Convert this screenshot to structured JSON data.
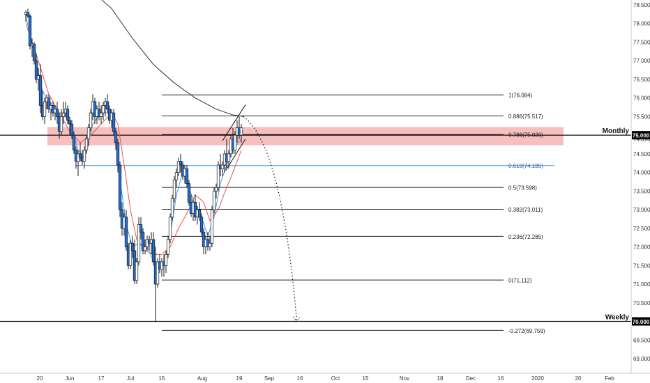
{
  "chart_data": {
    "type": "candlestick",
    "x_axis": {
      "tick_labels": [
        "20",
        "Jun",
        "17",
        "Jul",
        "15",
        "Aug",
        "19",
        "Sep",
        "16",
        "Oct",
        "15",
        "Nov",
        "18",
        "Dec",
        "16",
        "2020",
        "20",
        "Feb"
      ],
      "range_days": [
        -40,
        293
      ]
    },
    "y_axis": {
      "tick_labels": [
        "78.500",
        "78.000",
        "77.500",
        "77.000",
        "76.500",
        "76.000",
        "75.500",
        "74.500",
        "74.000",
        "73.500",
        "73.000",
        "72.500",
        "72.000",
        "71.500",
        "71.000",
        "70.500",
        "69.500",
        "69.000"
      ],
      "tick_values": [
        78.5,
        78.0,
        77.5,
        77.0,
        76.5,
        76.0,
        75.5,
        74.5,
        74.0,
        73.5,
        73.0,
        72.5,
        72.0,
        71.5,
        71.0,
        70.5,
        69.5,
        69.0
      ],
      "range": [
        68.75,
        78.68
      ],
      "last_price_label": "74.896",
      "last_price": 74.896
    },
    "horizontal_levels": [
      {
        "label": "Monthly",
        "price_label": "75.000",
        "value": 75.0
      },
      {
        "label": "Weekly",
        "price_label": "70.000",
        "value": 70.0
      }
    ],
    "zone": {
      "from": 74.73,
      "to": 75.22,
      "color": "#f28a8a"
    },
    "fibonacci": {
      "levels": [
        {
          "label": "1(76.084)",
          "value": 76.084
        },
        {
          "label": "0.886(75.517)",
          "value": 75.517
        },
        {
          "label": "0.786(75.020)",
          "value": 75.02
        },
        {
          "label": "0.618(74.185)",
          "value": 74.185
        },
        {
          "label": "0.5(73.598)",
          "value": 73.598
        },
        {
          "label": "0.382(73.011)",
          "value": 73.011
        },
        {
          "label": "0.236(72.285)",
          "value": 72.285
        },
        {
          "label": "0(71.112)",
          "value": 71.112
        },
        {
          "label": "-0.272(69.759)",
          "value": 69.759
        }
      ]
    },
    "candles": [
      [
        -42,
        78.25,
        78.35,
        78.05,
        78.3
      ],
      [
        -40,
        78.3,
        78.4,
        78.15,
        78.2
      ],
      [
        -38,
        78.2,
        78.25,
        77.3,
        77.4
      ],
      [
        -36,
        77.4,
        77.6,
        77.1,
        77.45
      ],
      [
        -34,
        77.45,
        77.5,
        76.9,
        77.0
      ],
      [
        -32,
        77.0,
        77.2,
        76.4,
        76.5
      ],
      [
        -30,
        76.5,
        76.8,
        76.2,
        76.6
      ],
      [
        -28,
        76.6,
        76.9,
        75.6,
        75.8
      ],
      [
        -26,
        75.8,
        76.2,
        75.4,
        75.5
      ],
      [
        -24,
        75.5,
        76.0,
        75.3,
        75.9
      ],
      [
        -22,
        75.9,
        76.1,
        75.7,
        76.0
      ],
      [
        -20,
        76.0,
        76.1,
        75.6,
        75.7
      ],
      [
        -18,
        75.7,
        75.9,
        75.4,
        75.8
      ],
      [
        -16,
        75.8,
        75.9,
        75.5,
        75.6
      ],
      [
        -14,
        75.6,
        75.8,
        75.4,
        75.7
      ],
      [
        -12,
        75.7,
        75.9,
        75.3,
        75.5
      ],
      [
        -10,
        75.5,
        75.6,
        74.9,
        75.1
      ],
      [
        -8,
        75.1,
        75.7,
        75.0,
        75.5
      ],
      [
        -6,
        75.5,
        75.9,
        75.3,
        75.6
      ],
      [
        -4,
        75.6,
        75.9,
        75.5,
        75.7
      ],
      [
        -2,
        75.7,
        75.8,
        75.3,
        75.4
      ],
      [
        0,
        75.4,
        75.5,
        75.0,
        75.3
      ],
      [
        2,
        75.3,
        75.4,
        74.9,
        75.0
      ],
      [
        4,
        75.0,
        75.1,
        74.5,
        74.6
      ],
      [
        6,
        74.6,
        74.7,
        74.1,
        74.3
      ],
      [
        8,
        74.3,
        74.6,
        73.9,
        74.5
      ],
      [
        10,
        74.5,
        74.8,
        74.3,
        74.4
      ],
      [
        12,
        74.4,
        74.6,
        74.2,
        74.3
      ],
      [
        14,
        74.3,
        74.7,
        74.1,
        74.6
      ],
      [
        16,
        74.6,
        75.0,
        74.5,
        74.9
      ],
      [
        18,
        74.9,
        75.3,
        74.7,
        75.2
      ],
      [
        20,
        75.2,
        75.7,
        75.1,
        75.6
      ],
      [
        22,
        75.6,
        76.1,
        75.4,
        75.9
      ],
      [
        24,
        75.9,
        76.0,
        75.3,
        75.5
      ],
      [
        26,
        75.5,
        75.8,
        75.3,
        75.7
      ],
      [
        28,
        75.7,
        75.9,
        75.4,
        75.5
      ],
      [
        30,
        75.5,
        75.8,
        75.3,
        75.6
      ],
      [
        32,
        75.6,
        75.9,
        75.4,
        75.8
      ],
      [
        34,
        75.8,
        76.0,
        75.5,
        75.9
      ],
      [
        36,
        75.9,
        76.1,
        75.6,
        75.7
      ],
      [
        38,
        75.7,
        75.8,
        75.3,
        75.4
      ],
      [
        40,
        75.4,
        75.7,
        75.2,
        75.6
      ],
      [
        42,
        75.6,
        75.7,
        75.0,
        75.1
      ],
      [
        44,
        75.1,
        75.2,
        74.6,
        74.8
      ],
      [
        46,
        74.8,
        74.9,
        74.0,
        74.2
      ],
      [
        48,
        74.2,
        74.3,
        72.8,
        73.0
      ],
      [
        50,
        73.0,
        73.2,
        72.3,
        72.5
      ],
      [
        52,
        72.5,
        72.9,
        72.3,
        72.8
      ],
      [
        54,
        72.8,
        73.0,
        71.9,
        72.0
      ],
      [
        56,
        72.0,
        72.1,
        71.4,
        71.5
      ],
      [
        58,
        71.5,
        72.2,
        71.4,
        72.1
      ],
      [
        60,
        72.1,
        72.3,
        71.7,
        71.9
      ],
      [
        62,
        71.9,
        72.2,
        71.0,
        71.1
      ],
      [
        64,
        71.1,
        71.7,
        71.0,
        71.6
      ],
      [
        66,
        71.6,
        72.8,
        71.5,
        72.6
      ],
      [
        68,
        72.6,
        72.8,
        72.2,
        72.4
      ],
      [
        70,
        72.4,
        72.5,
        71.8,
        71.9
      ],
      [
        72,
        71.9,
        72.2,
        71.8,
        72.0
      ],
      [
        74,
        72.0,
        72.3,
        71.9,
        72.2
      ],
      [
        76,
        72.2,
        72.3,
        71.9,
        72.1
      ],
      [
        78,
        72.1,
        72.4,
        71.8,
        72.2
      ],
      [
        80,
        72.2,
        72.4,
        71.5,
        71.6
      ],
      [
        82,
        71.6,
        72.0,
        69.98,
        71.0
      ],
      [
        84,
        71.0,
        71.7,
        70.9,
        71.6
      ],
      [
        86,
        71.6,
        71.8,
        71.3,
        71.4
      ],
      [
        88,
        71.4,
        71.7,
        71.2,
        71.6
      ],
      [
        90,
        71.6,
        71.8,
        71.2,
        71.5
      ],
      [
        92,
        71.5,
        71.9,
        71.3,
        71.8
      ],
      [
        94,
        71.8,
        72.3,
        71.7,
        72.2
      ],
      [
        96,
        72.2,
        72.9,
        72.1,
        72.8
      ],
      [
        98,
        72.8,
        73.4,
        72.7,
        73.3
      ],
      [
        100,
        73.3,
        73.9,
        73.2,
        73.8
      ],
      [
        102,
        73.8,
        74.1,
        73.6,
        74.0
      ],
      [
        104,
        74.0,
        74.4,
        73.9,
        74.3
      ],
      [
        106,
        74.3,
        74.5,
        74.0,
        74.2
      ],
      [
        108,
        74.2,
        74.3,
        73.8,
        73.9
      ],
      [
        110,
        73.9,
        74.2,
        73.7,
        74.1
      ],
      [
        112,
        74.1,
        74.2,
        73.6,
        73.7
      ],
      [
        114,
        73.7,
        73.8,
        73.1,
        73.2
      ],
      [
        116,
        73.2,
        73.4,
        72.8,
        72.9
      ],
      [
        118,
        72.9,
        73.3,
        72.7,
        73.2
      ],
      [
        120,
        73.2,
        73.4,
        72.7,
        72.8
      ],
      [
        122,
        72.8,
        73.1,
        72.6,
        73.0
      ],
      [
        124,
        73.0,
        73.2,
        72.7,
        72.8
      ],
      [
        126,
        72.8,
        72.9,
        72.3,
        72.4
      ],
      [
        128,
        72.4,
        72.5,
        71.8,
        72.0
      ],
      [
        130,
        72.0,
        72.3,
        71.8,
        72.2
      ],
      [
        132,
        72.2,
        72.4,
        71.9,
        72.0
      ],
      [
        134,
        72.0,
        72.3,
        71.9,
        72.1
      ],
      [
        136,
        72.1,
        73.1,
        72.0,
        73.0
      ],
      [
        138,
        73.0,
        73.6,
        72.9,
        73.5
      ],
      [
        140,
        73.5,
        73.7,
        73.3,
        73.6
      ],
      [
        142,
        73.6,
        74.3,
        73.5,
        74.2
      ],
      [
        144,
        74.2,
        74.5,
        73.9,
        74.1
      ],
      [
        146,
        74.1,
        74.3,
        73.9,
        74.2
      ],
      [
        148,
        74.2,
        74.6,
        74.0,
        74.5
      ],
      [
        150,
        74.5,
        74.9,
        74.1,
        74.3
      ],
      [
        152,
        74.3,
        74.6,
        74.1,
        74.5
      ],
      [
        154,
        74.5,
        75.0,
        74.4,
        74.9
      ],
      [
        156,
        74.9,
        75.2,
        74.5,
        74.6
      ],
      [
        158,
        74.6,
        75.1,
        74.5,
        75.0
      ],
      [
        160,
        75.0,
        75.4,
        74.8,
        75.2
      ],
      [
        162,
        75.2,
        75.5,
        74.9,
        75.0
      ],
      [
        164,
        75.0,
        75.3,
        74.8,
        75.2
      ]
    ],
    "moving_averages": [
      {
        "color": "#e8534f",
        "points": [
          [
            -42,
            78.0
          ],
          [
            -30,
            77.0
          ],
          [
            -20,
            76.1
          ],
          [
            -8,
            75.5
          ],
          [
            0,
            75.1
          ],
          [
            10,
            74.8
          ],
          [
            20,
            75.0
          ],
          [
            30,
            75.3
          ],
          [
            40,
            75.6
          ],
          [
            46,
            75.3
          ],
          [
            52,
            74.2
          ],
          [
            58,
            73.0
          ],
          [
            64,
            72.2
          ],
          [
            72,
            71.9
          ],
          [
            80,
            71.8
          ],
          [
            88,
            71.8
          ],
          [
            96,
            72.0
          ],
          [
            104,
            72.5
          ],
          [
            112,
            72.9
          ],
          [
            120,
            73.4
          ],
          [
            128,
            73.2
          ],
          [
            134,
            72.7
          ],
          [
            142,
            73.0
          ],
          [
            150,
            73.6
          ],
          [
            156,
            74.0
          ],
          [
            164,
            74.6
          ]
        ]
      },
      {
        "color": "#3d9be9",
        "points": [
          [
            -42,
            78.2
          ],
          [
            -34,
            77.2
          ],
          [
            -26,
            76.2
          ],
          [
            -16,
            75.6
          ],
          [
            -6,
            75.6
          ],
          [
            2,
            75.2
          ],
          [
            8,
            74.6
          ],
          [
            14,
            74.4
          ],
          [
            22,
            75.3
          ],
          [
            30,
            75.6
          ],
          [
            38,
            75.6
          ],
          [
            44,
            75.0
          ],
          [
            48,
            73.8
          ],
          [
            54,
            72.6
          ],
          [
            60,
            72.0
          ],
          [
            66,
            72.1
          ],
          [
            74,
            72.0
          ],
          [
            82,
            71.5
          ],
          [
            90,
            71.5
          ],
          [
            96,
            72.3
          ],
          [
            102,
            73.4
          ],
          [
            108,
            74.0
          ],
          [
            114,
            73.6
          ],
          [
            120,
            73.1
          ],
          [
            126,
            72.8
          ],
          [
            132,
            72.3
          ],
          [
            138,
            72.8
          ],
          [
            144,
            73.7
          ],
          [
            150,
            74.2
          ],
          [
            156,
            74.6
          ],
          [
            164,
            74.9
          ]
        ]
      },
      {
        "color": "#333333",
        "points": [
          [
            0,
            79.2
          ],
          [
            20,
            78.9
          ],
          [
            40,
            78.4
          ],
          [
            60,
            77.6
          ],
          [
            80,
            76.9
          ],
          [
            100,
            76.4
          ],
          [
            120,
            76.0
          ],
          [
            140,
            75.7
          ],
          [
            155,
            75.55
          ],
          [
            166,
            75.5
          ]
        ]
      }
    ],
    "channel_lines": [
      {
        "from": [
          146,
          74.85
        ],
        "to": [
          168,
          75.82
        ]
      },
      {
        "from": [
          149,
          74.05
        ],
        "to": [
          168,
          74.9
        ]
      }
    ],
    "projection": {
      "from": [
        166,
        75.5
      ],
      "to": [
        217,
        70.0
      ]
    },
    "grid": false
  }
}
